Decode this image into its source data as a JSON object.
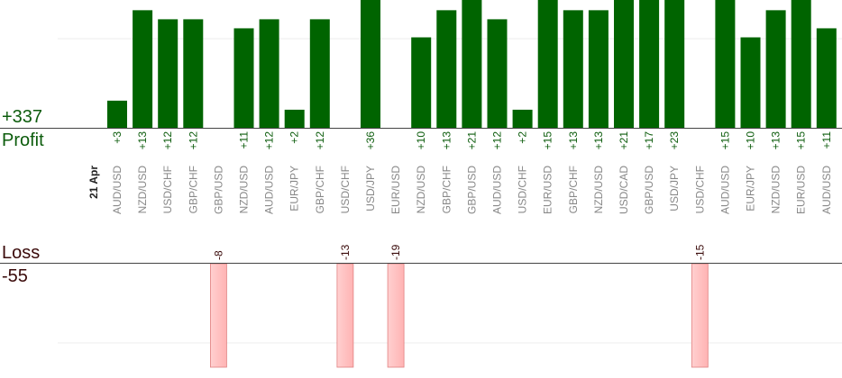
{
  "summary": {
    "profit_total": "+337",
    "profit_label": "Profit",
    "loss_label": "Loss",
    "loss_total": "-55"
  },
  "colors": {
    "profit_bar": "#006400",
    "loss_bar": "#ffb3b3",
    "loss_bar_edge": "#e08080",
    "profit_text": "#0c5c0c",
    "loss_text": "#3a0a0a",
    "axis": "#444444",
    "category_text": "#888888",
    "grid": "#eeeeee"
  },
  "chart_data": {
    "type": "bar",
    "date_label": "21 Apr",
    "categories": [
      "AUD/USD",
      "NZD/USD",
      "USD/CHF",
      "GBP/CHF",
      "GBP/USD",
      "NZD/USD",
      "AUD/USD",
      "EUR/JPY",
      "GBP/CHF",
      "USD/CHF",
      "USD/JPY",
      "EUR/USD",
      "NZD/USD",
      "GBP/CHF",
      "GBP/USD",
      "AUD/USD",
      "USD/CHF",
      "EUR/USD",
      "GBP/CHF",
      "NZD/USD",
      "USD/CAD",
      "GBP/USD",
      "USD/JPY",
      "USD/CHF",
      "AUD/USD",
      "EUR/JPY",
      "NZD/USD",
      "EUR/USD",
      "AUD/USD"
    ],
    "series": [
      {
        "values": [
          3,
          13,
          12,
          12,
          -8,
          11,
          12,
          2,
          12,
          -13,
          36,
          -19,
          10,
          13,
          21,
          12,
          2,
          15,
          13,
          13,
          21,
          17,
          23,
          -15,
          15,
          10,
          13,
          15,
          11
        ]
      }
    ],
    "value_labels": [
      "+3",
      "+13",
      "+12",
      "+12",
      "-8",
      "+11",
      "+12",
      "+2",
      "+12",
      "-13",
      "+36",
      "-19",
      "+10",
      "+13",
      "+21",
      "+12",
      "+2",
      "+15",
      "+13",
      "+13",
      "+21",
      "+17",
      "+23",
      "-15",
      "+15",
      "+10",
      "+13",
      "+15",
      "+11"
    ]
  }
}
